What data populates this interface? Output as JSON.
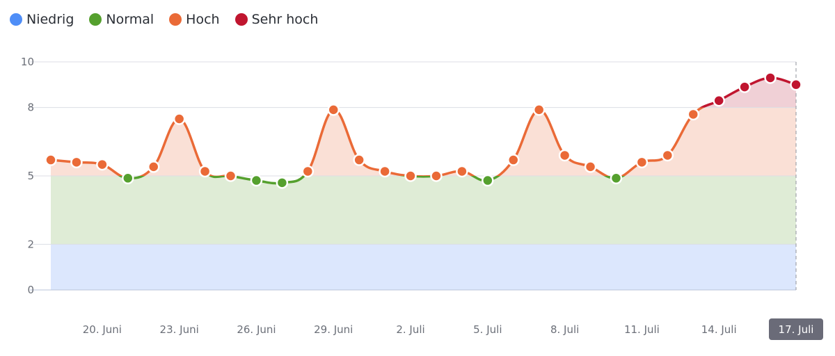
{
  "legend": [
    {
      "label": "Niedrig",
      "color": "#4f8ef7"
    },
    {
      "label": "Normal",
      "color": "#55a02e"
    },
    {
      "label": "Hoch",
      "color": "#ea6a37"
    },
    {
      "label": "Sehr hoch",
      "color": "#c0152f"
    }
  ],
  "chart_data": {
    "type": "line",
    "x": [
      "18. Juni",
      "19. Juni",
      "20. Juni",
      "21. Juni",
      "22. Juni",
      "23. Juni",
      "24. Juni",
      "25. Juni",
      "26. Juni",
      "27. Juni",
      "28. Juni",
      "29. Juni",
      "30. Juni",
      "1. Juli",
      "2. Juli",
      "3. Juli",
      "4. Juli",
      "5. Juli",
      "6. Juli",
      "7. Juli",
      "8. Juli",
      "9. Juli",
      "10. Juli",
      "11. Juli",
      "12. Juli",
      "13. Juli",
      "14. Juli",
      "15. Juli",
      "16. Juli",
      "17. Juli"
    ],
    "values": [
      5.7,
      5.6,
      5.5,
      4.9,
      5.4,
      7.5,
      5.2,
      5.0,
      4.8,
      4.7,
      5.2,
      7.9,
      5.7,
      5.2,
      5.0,
      5.0,
      5.2,
      4.8,
      5.7,
      7.9,
      5.9,
      5.4,
      4.9,
      5.6,
      5.9,
      7.7,
      8.3,
      8.9,
      9.3,
      9.0
    ],
    "ylim": [
      0,
      10
    ],
    "y_ticks": [
      0,
      2,
      5,
      8,
      10
    ],
    "x_tick_labels": [
      "20. Juni",
      "23. Juni",
      "26. Juni",
      "29. Juni",
      "2. Juli",
      "5. Juli",
      "8. Juli",
      "11. Juli",
      "14. Juli"
    ],
    "highlighted_x_label": "17. Juli",
    "bands": [
      {
        "name": "Niedrig",
        "from": 0,
        "to": 2,
        "line": "#4f8ef7",
        "fill": "#dce7fd"
      },
      {
        "name": "Normal",
        "from": 2,
        "to": 5,
        "line": "#55a02e",
        "fill": "#dfecd6"
      },
      {
        "name": "Hoch",
        "from": 5,
        "to": 8,
        "line": "#ea6a37",
        "fill": "#fae0d6"
      },
      {
        "name": "Sehr hoch",
        "from": 8,
        "to": 10,
        "line": "#c0152f",
        "fill": "#f0d0d6"
      }
    ],
    "grid": true,
    "legend_position": "top-left"
  }
}
